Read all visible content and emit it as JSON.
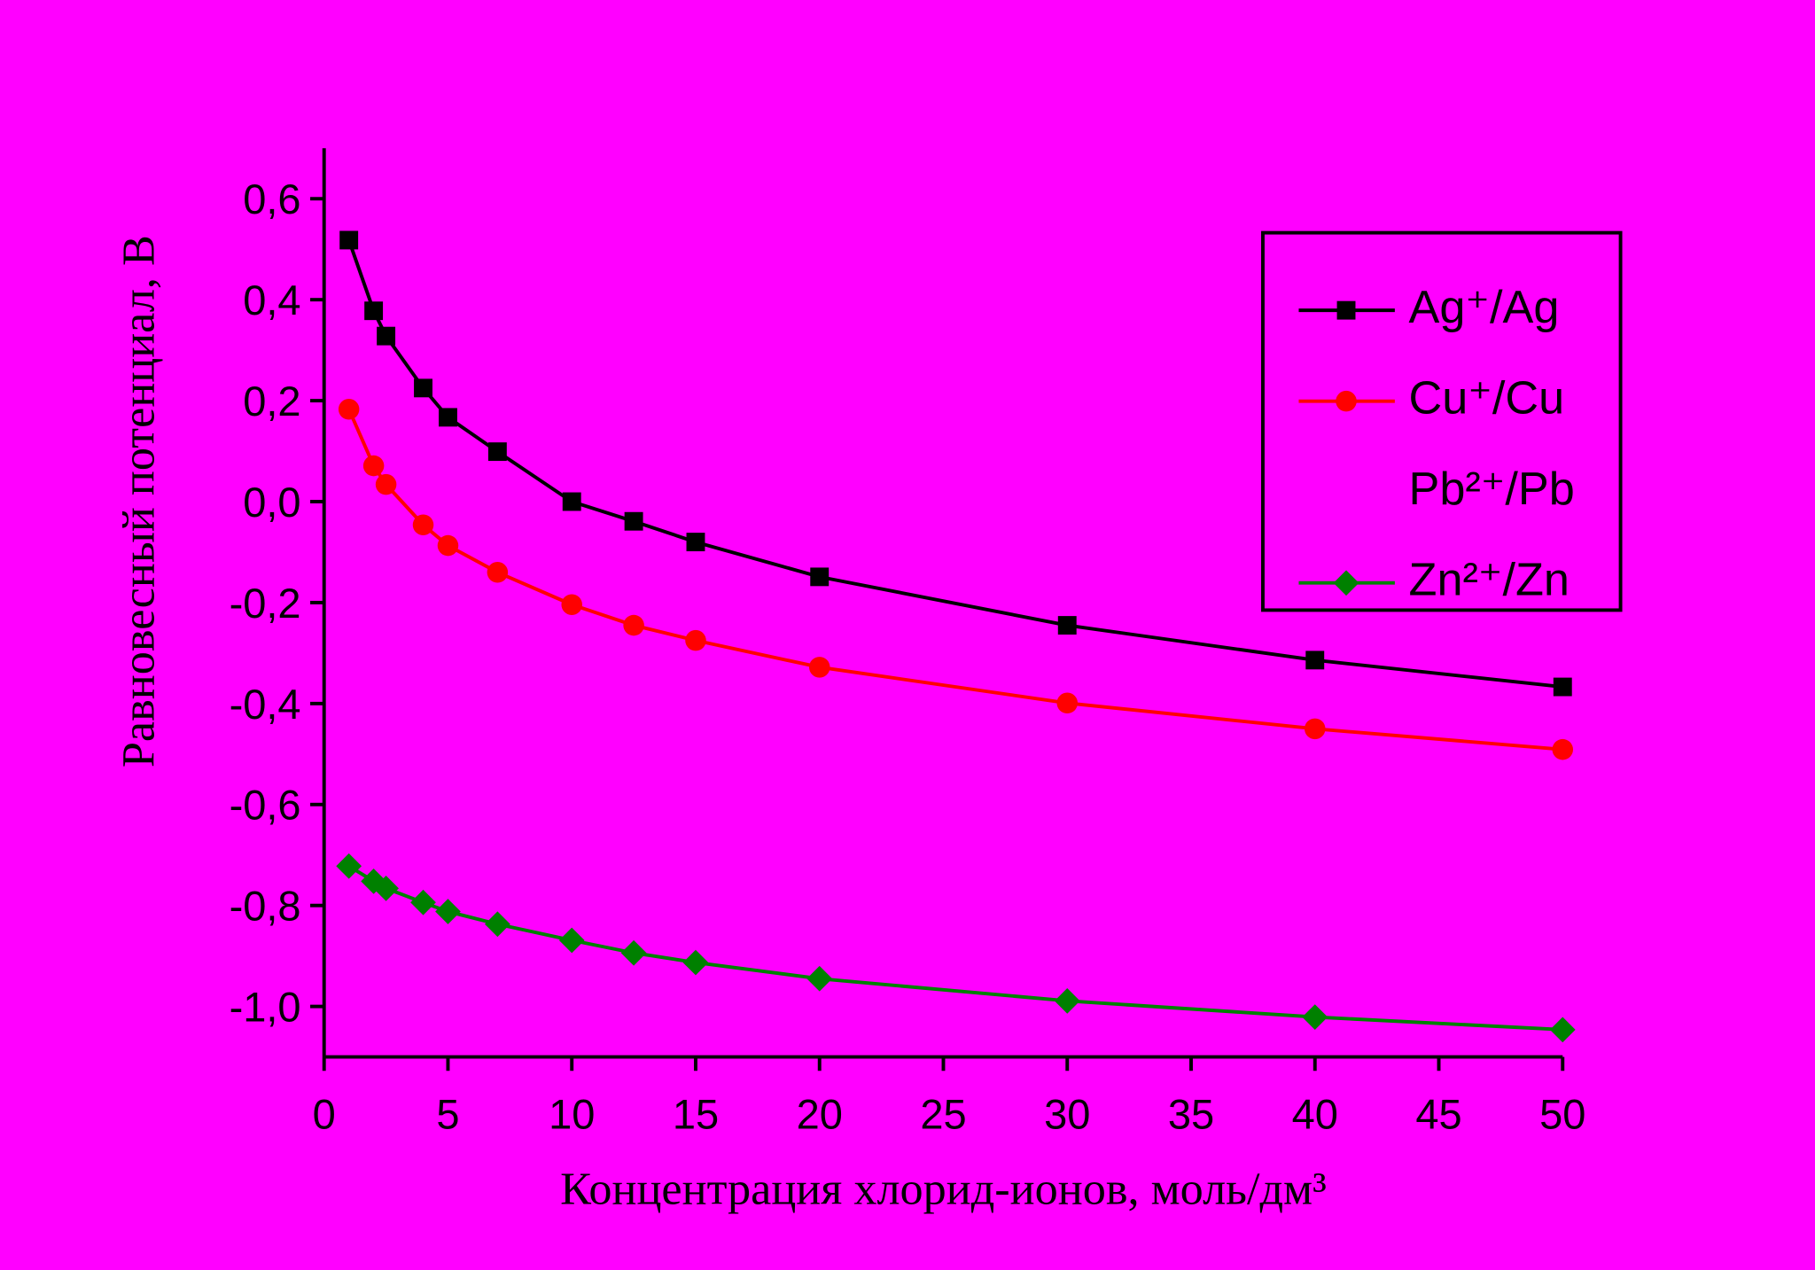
{
  "chart_data": {
    "type": "line",
    "xlabel": "Концентрация хлорид-ионов, моль/дм³",
    "ylabel": "Равновесный потенциал, В",
    "x": [
      1,
      2,
      2.5,
      4,
      5,
      7,
      10,
      12.5,
      15,
      20,
      30,
      40,
      50
    ],
    "series": [
      {
        "name": "Ag⁺/Ag",
        "color": "#000000",
        "marker": "square",
        "values": [
          0.518,
          0.378,
          0.328,
          0.225,
          0.167,
          0.099,
          0.0,
          -0.039,
          -0.08,
          -0.149,
          -0.245,
          -0.314,
          -0.367
        ]
      },
      {
        "name": "Cu⁺/Cu",
        "color": "#ff0000",
        "marker": "circle",
        "values": [
          0.183,
          0.071,
          0.034,
          -0.046,
          -0.087,
          -0.14,
          -0.204,
          -0.245,
          -0.275,
          -0.328,
          -0.399,
          -0.45,
          -0.491
        ]
      },
      {
        "name": "Pb²⁺/Pb",
        "color": "#ff00ff",
        "marker": "triangle-down",
        "values": [
          null,
          null,
          null,
          null,
          null,
          null,
          null,
          null,
          null,
          null,
          null,
          null,
          null
        ]
      },
      {
        "name": "Zn²⁺/Zn",
        "color": "#008000",
        "marker": "diamond",
        "values": [
          -0.722,
          -0.752,
          -0.766,
          -0.794,
          -0.812,
          -0.837,
          -0.869,
          -0.894,
          -0.913,
          -0.945,
          -0.989,
          -1.021,
          -1.046
        ]
      }
    ],
    "xlim": [
      0,
      50
    ],
    "xticks": [
      0,
      5,
      10,
      15,
      20,
      25,
      30,
      35,
      40,
      45,
      50
    ],
    "ylim": [
      -1.1,
      0.7
    ],
    "yticks": [
      {
        "value": -1.0,
        "label": "-1,0"
      },
      {
        "value": -0.8,
        "label": "-0,8"
      },
      {
        "value": -0.6,
        "label": "-0,6"
      },
      {
        "value": -0.4,
        "label": "-0,4"
      },
      {
        "value": -0.2,
        "label": "-0,2"
      },
      {
        "value": 0.0,
        "label": "0,0"
      },
      {
        "value": 0.2,
        "label": "0,2"
      },
      {
        "value": 0.4,
        "label": "0,4"
      },
      {
        "value": 0.6,
        "label": "0,6"
      }
    ],
    "legend": "upper right",
    "grid": false
  }
}
